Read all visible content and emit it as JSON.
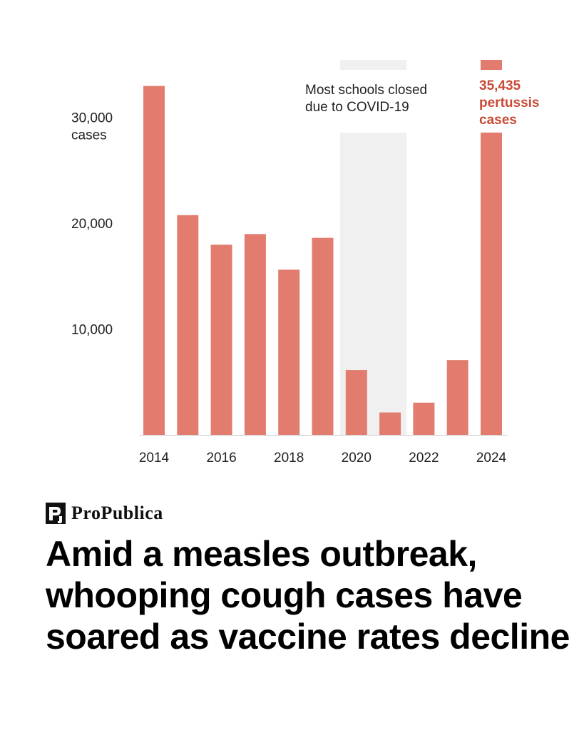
{
  "brand": {
    "name": "ProPublica"
  },
  "headline": "Amid a measles outbreak, whooping cough cases have soared as vaccine rates decline",
  "colors": {
    "bar": "#E27C6E",
    "shade": "#F0F0F0",
    "callout": "#C94A36",
    "axis": "#CCCCCC"
  },
  "chart_data": {
    "type": "bar",
    "x": [
      2014,
      2015,
      2016,
      2017,
      2018,
      2019,
      2020,
      2021,
      2022,
      2023,
      2024
    ],
    "values": [
      32971,
      20762,
      17972,
      18975,
      15609,
      18617,
      6124,
      2116,
      3044,
      7063,
      35435
    ],
    "x_tick_labels": [
      "2014",
      "2016",
      "2018",
      "2020",
      "2022",
      "2024"
    ],
    "y_ticks": [
      {
        "value": 10000,
        "label": "10,000"
      },
      {
        "value": 20000,
        "label": "20,000"
      },
      {
        "value": 30000,
        "label": "30,000"
      }
    ],
    "y_unit_label": "cases",
    "ylim": [
      0,
      35435
    ],
    "grid": false,
    "shaded_region": {
      "x_start": 2020,
      "x_end": 2021,
      "label_lines": [
        "Most schools closed",
        "due to COVID-19"
      ]
    },
    "annotation": {
      "x": 2024,
      "label_lines": [
        "35,435",
        "pertussis",
        "cases"
      ]
    }
  }
}
